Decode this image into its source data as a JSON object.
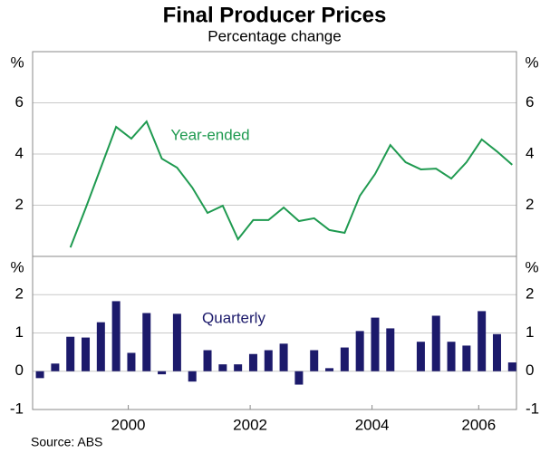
{
  "title": "Final Producer Prices",
  "subtitle": "Percentage change",
  "source": "Source: ABS",
  "chart_data": [
    {
      "type": "line",
      "y_label": "%",
      "mirror_ticks": true,
      "grid": true,
      "xlim": [
        1998.88,
        2006.82
      ],
      "ylim": [
        0,
        8
      ],
      "yticks": [
        2,
        4,
        6
      ],
      "x": [
        1999.0,
        1999.25,
        1999.5,
        1999.75,
        2000.0,
        2000.25,
        2000.5,
        2000.75,
        2001.0,
        2001.25,
        2001.5,
        2001.75,
        2002.0,
        2002.25,
        2002.5,
        2002.75,
        2003.0,
        2003.25,
        2003.5,
        2003.75,
        2004.0,
        2004.25,
        2004.5,
        2004.75,
        2005.0,
        2005.25,
        2005.5,
        2005.75,
        2006.0,
        2006.25,
        2006.5,
        2006.75
      ],
      "series": [
        {
          "name": "Year-ended",
          "color": "#1f9a50",
          "values": [
            null,
            null,
            0.35,
            1.88,
            3.47,
            5.06,
            4.6,
            5.27,
            3.82,
            3.47,
            2.69,
            1.7,
            1.98,
            0.67,
            1.42,
            1.42,
            1.91,
            1.38,
            1.49,
            1.03,
            0.92,
            2.37,
            3.22,
            4.35,
            3.68,
            3.4,
            3.43,
            3.04,
            3.68,
            4.57,
            4.1,
            3.58
          ]
        }
      ]
    },
    {
      "type": "bar",
      "y_label": "%",
      "mirror_ticks": true,
      "grid": true,
      "xlim": [
        1998.88,
        2006.82
      ],
      "ylim": [
        -1,
        3
      ],
      "yticks": [
        -1,
        0,
        1,
        2
      ],
      "xticks": [
        {
          "value": 2000.45,
          "label": "2000"
        },
        {
          "value": 2002.45,
          "label": "2002"
        },
        {
          "value": 2004.45,
          "label": "2004"
        },
        {
          "value": 2006.2,
          "label": "2006"
        }
      ],
      "x": [
        1999.0,
        1999.25,
        1999.5,
        1999.75,
        2000.0,
        2000.25,
        2000.5,
        2000.75,
        2001.0,
        2001.25,
        2001.5,
        2001.75,
        2002.0,
        2002.25,
        2002.5,
        2002.75,
        2003.0,
        2003.25,
        2003.5,
        2003.75,
        2004.0,
        2004.25,
        2004.5,
        2004.75,
        2005.0,
        2005.25,
        2005.5,
        2005.75,
        2006.0,
        2006.25,
        2006.5,
        2006.75
      ],
      "series": [
        {
          "name": "Quarterly",
          "color": "#1c1a6b",
          "values": [
            -0.18,
            0.2,
            0.9,
            0.88,
            1.28,
            1.83,
            0.48,
            1.52,
            -0.08,
            1.5,
            -0.27,
            0.55,
            0.18,
            0.18,
            0.45,
            0.55,
            0.72,
            -0.35,
            0.55,
            0.08,
            0.62,
            1.05,
            1.4,
            1.12,
            0,
            0.77,
            1.45,
            0.77,
            0.67,
            1.57,
            0.97,
            0.23
          ]
        }
      ]
    }
  ]
}
